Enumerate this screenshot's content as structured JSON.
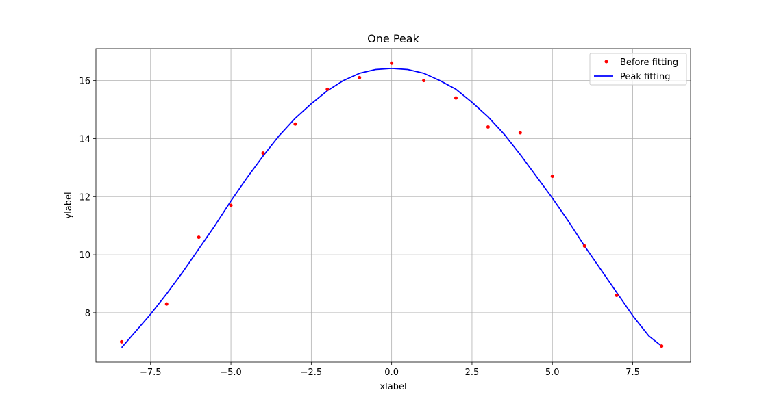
{
  "chart_data": {
    "type": "line",
    "title": "One Peak",
    "xlabel": "xlabel",
    "ylabel": "ylabel",
    "xlim": [
      -9.2,
      9.3
    ],
    "ylim": [
      6.3,
      17.1
    ],
    "xticks": [
      -7.5,
      -5.0,
      -2.5,
      0.0,
      2.5,
      5.0,
      7.5
    ],
    "xtick_labels": [
      "−7.5",
      "−5.0",
      "−2.5",
      "0.0",
      "2.5",
      "5.0",
      "7.5"
    ],
    "yticks": [
      8,
      10,
      12,
      14,
      16
    ],
    "ytick_labels": [
      "8",
      "10",
      "12",
      "14",
      "16"
    ],
    "grid": true,
    "legend_position": "top-right",
    "series": [
      {
        "name": "Before fitting",
        "kind": "scatter",
        "color": "#ff0000",
        "x": [
          -8.4,
          -7,
          -6,
          -5,
          -4,
          -3,
          -2,
          -1,
          0,
          1,
          2,
          3,
          4,
          5,
          6,
          7,
          8.4
        ],
        "y": [
          7.0,
          8.3,
          10.6,
          11.7,
          13.5,
          14.5,
          15.7,
          16.1,
          16.6,
          16.0,
          15.4,
          14.4,
          14.2,
          12.7,
          10.3,
          8.6,
          6.85
        ]
      },
      {
        "name": "Peak fitting",
        "kind": "line",
        "color": "#0000ff",
        "x": [
          -8.4,
          -7.5,
          -7.0,
          -6.5,
          -6.0,
          -5.5,
          -5.0,
          -4.5,
          -4.0,
          -3.5,
          -3.0,
          -2.5,
          -2.0,
          -1.5,
          -1.0,
          -0.5,
          0.0,
          0.5,
          1.0,
          1.5,
          2.0,
          2.5,
          3.0,
          3.5,
          4.0,
          4.5,
          5.0,
          5.5,
          6.0,
          6.5,
          7.0,
          7.5,
          8.0,
          8.4
        ],
        "y": [
          6.8,
          7.95,
          8.65,
          9.4,
          10.2,
          11.0,
          11.85,
          12.65,
          13.4,
          14.1,
          14.7,
          15.2,
          15.65,
          16.0,
          16.25,
          16.38,
          16.42,
          16.38,
          16.25,
          16.0,
          15.7,
          15.25,
          14.75,
          14.15,
          13.45,
          12.7,
          11.95,
          11.15,
          10.3,
          9.5,
          8.7,
          7.9,
          7.2,
          6.85
        ]
      }
    ]
  }
}
